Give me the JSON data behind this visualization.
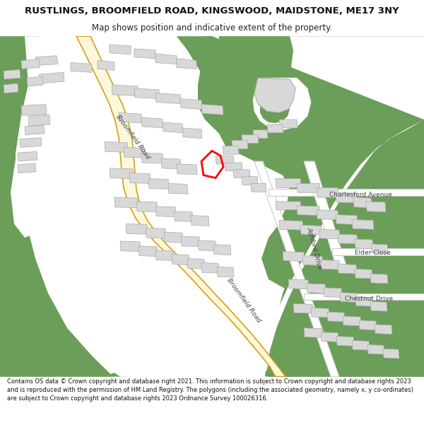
{
  "title": "RUSTLINGS, BROOMFIELD ROAD, KINGSWOOD, MAIDSTONE, ME17 3NY",
  "subtitle": "Map shows position and indicative extent of the property.",
  "footer": "Contains OS data © Crown copyright and database right 2021. This information is subject to Crown copyright and database rights 2023 and is reproduced with the permission of HM Land Registry. The polygons (including the associated geometry, namely x, y co-ordinates) are subject to Crown copyright and database rights 2023 Ordnance Survey 100026316.",
  "bg_green": "#6b9e58",
  "road_fill": "#fdf8dc",
  "road_edge": "#d4a017",
  "bld_fill": "#d8d8d8",
  "bld_edge": "#aaaaaa",
  "white": "#ffffff",
  "plot_color": "#ff0000",
  "label_color": "#444444",
  "header_bg": "#ffffff",
  "footer_bg": "#ffffff"
}
